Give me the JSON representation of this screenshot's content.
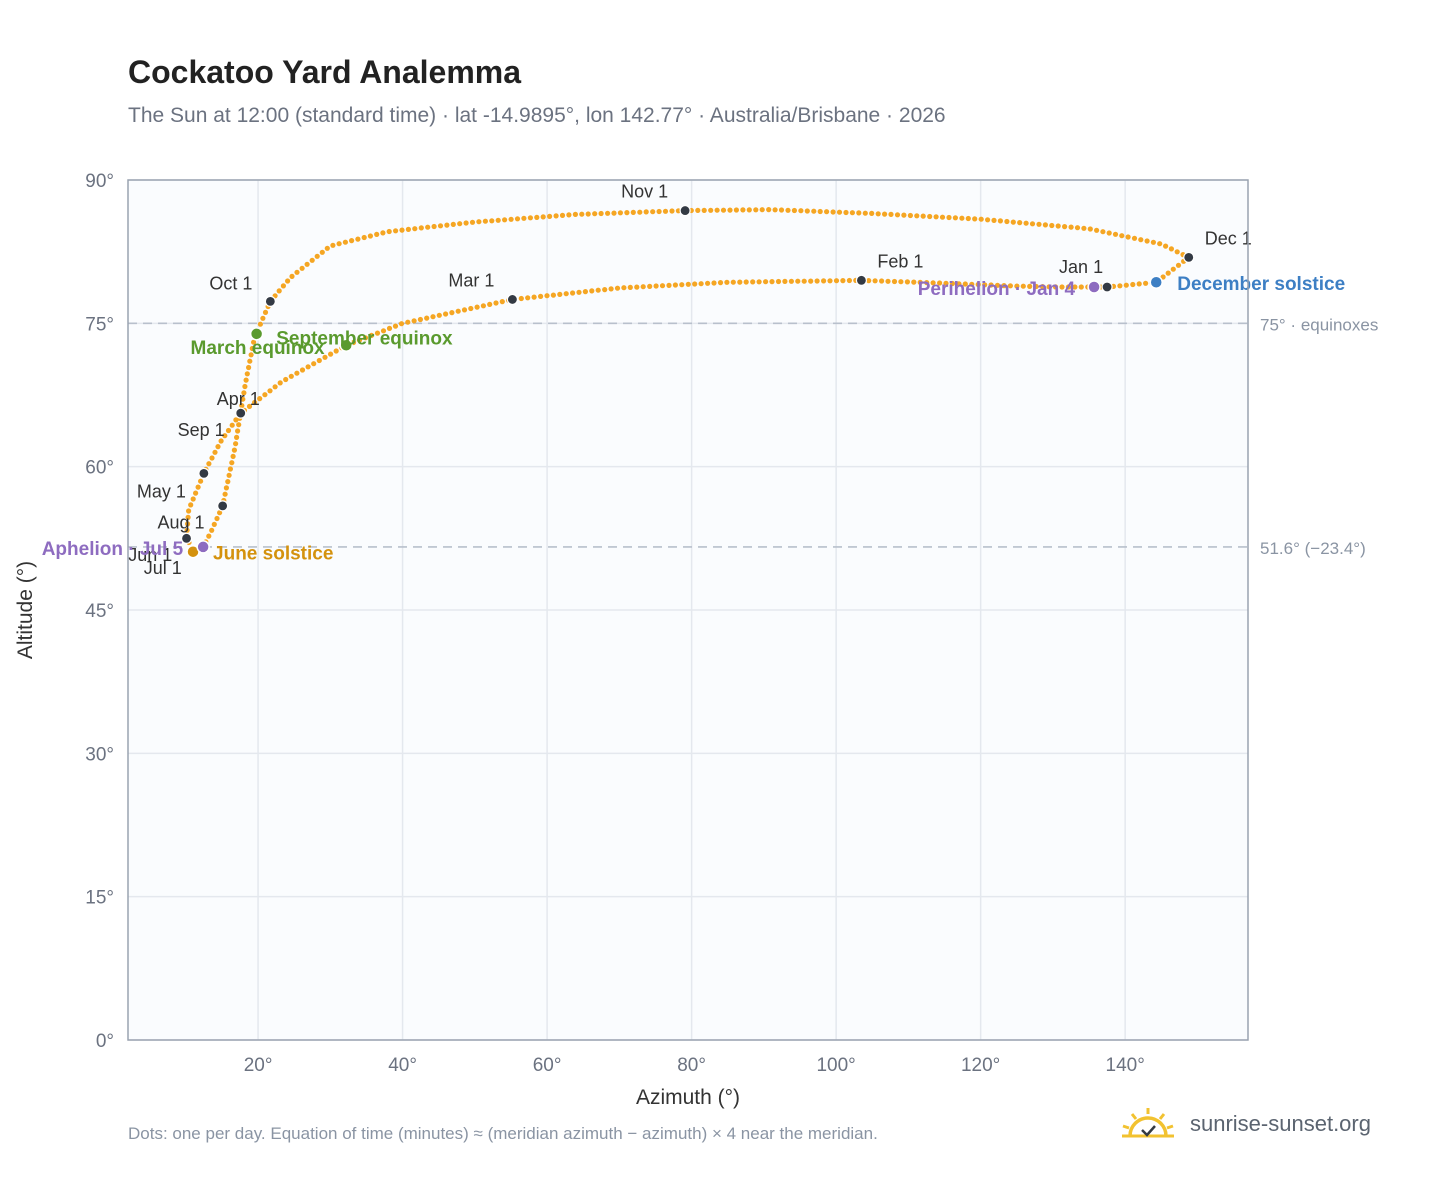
{
  "header": {
    "title": "Cockatoo Yard Analemma",
    "subtitle": "The Sun at 12:00 (standard time) · lat -14.9895°, lon 142.77° · Australia/Brisbane · 2026"
  },
  "footer": {
    "note": "Dots: one per day. Equation of time (minutes) ≈ (meridian azimuth − azimuth) × 4 near the meridian.",
    "brand": "sunrise-sunset.org"
  },
  "chart_data": {
    "type": "scatter",
    "xlabel": "Azimuth (°)",
    "ylabel": "Altitude (°)",
    "xlim": [
      2,
      157
    ],
    "ylim": [
      0,
      90
    ],
    "xticks": [
      20,
      40,
      60,
      80,
      100,
      120,
      140
    ],
    "xtick_labels": [
      "20°",
      "40°",
      "60°",
      "80°",
      "100°",
      "120°",
      "140°"
    ],
    "yticks": [
      0,
      15,
      30,
      45,
      60,
      75,
      90
    ],
    "ytick_labels": [
      "0°",
      "15°",
      "30°",
      "45°",
      "60°",
      "75°",
      "90°"
    ],
    "grid": true,
    "colors": {
      "path": "#f5a623",
      "month": "#333a44",
      "equinox": "#5a9a2e",
      "june": "#d4920e",
      "december": "#3d7fc4",
      "apsis": "#8e6cc0",
      "ref": "#b8c0cc",
      "grid": "#e4e8ee",
      "frame": "#9aa3b0",
      "plot_bg": "#fafcfe"
    },
    "reference_lines": [
      {
        "y": 75,
        "label": "75° · equinoxes"
      },
      {
        "y": 51.6,
        "label": "51.6° (−23.4°)"
      }
    ],
    "month_markers": [
      {
        "label": "Jan 1",
        "x": 137.5,
        "y": 78.8,
        "anchor": "end",
        "dx": -4,
        "dy": -14
      },
      {
        "label": "Feb 1",
        "x": 103.5,
        "y": 79.5,
        "anchor": "start",
        "dx": 16,
        "dy": -13
      },
      {
        "label": "Mar 1",
        "x": 55.2,
        "y": 77.5,
        "anchor": "end",
        "dx": -18,
        "dy": -13
      },
      {
        "label": "Apr 1",
        "x": 17.6,
        "y": 65.6,
        "anchor": "start",
        "dx": -24,
        "dy": -8
      },
      {
        "label": "May 1",
        "x": 12.5,
        "y": 59.3,
        "anchor": "end",
        "dx": -18,
        "dy": 24
      },
      {
        "label": "Jun 1",
        "x": 10.9,
        "y": 51.3,
        "anchor": "end",
        "dx": -20,
        "dy": 11
      },
      {
        "label": "Jul 1",
        "x": 11.1,
        "y": 51.2,
        "anchor": "end",
        "dx": -12,
        "dy": 23
      },
      {
        "label": "Aug 1",
        "x": 10.1,
        "y": 52.5,
        "anchor": "end",
        "dx": 18,
        "dy": -10
      },
      {
        "label": "Sep 1",
        "x": 15.1,
        "y": 55.9,
        "anchor": "end",
        "dx": 2,
        "dy": -70
      },
      {
        "label": "Oct 1",
        "x": 21.7,
        "y": 77.3,
        "anchor": "end",
        "dx": -18,
        "dy": -12
      },
      {
        "label": "Nov 1",
        "x": 79.1,
        "y": 86.8,
        "anchor": "end",
        "dx": -17,
        "dy": -13
      },
      {
        "label": "Dec 1",
        "x": 148.8,
        "y": 81.9,
        "anchor": "start",
        "dx": 16,
        "dy": -13
      }
    ],
    "events": [
      {
        "label": "March equinox",
        "x": 19.8,
        "y": 73.9,
        "color": "equinox",
        "anchor": "end",
        "dx": 68,
        "dy": 20
      },
      {
        "label": "September equinox",
        "x": 32.2,
        "y": 72.7,
        "color": "equinox",
        "anchor": "start",
        "dx": -70,
        "dy": -1
      },
      {
        "label": "June solstice",
        "x": 11.0,
        "y": 51.1,
        "color": "june",
        "anchor": "start",
        "dx": 20,
        "dy": 8
      },
      {
        "label": "December solstice",
        "x": 144.3,
        "y": 79.3,
        "color": "december",
        "anchor": "start",
        "dx": 21,
        "dy": 8
      },
      {
        "label": "Perihelion · Jan 4",
        "x": 135.7,
        "y": 78.8,
        "color": "apsis",
        "anchor": "end",
        "dx": -19,
        "dy": 8
      },
      {
        "label": "Aphelion · Jul 5",
        "x": 12.4,
        "y": 51.6,
        "color": "apsis",
        "anchor": "end",
        "dx": -20,
        "dy": 8
      }
    ],
    "series": [
      {
        "anchors": [
          [
            137.5,
            78.8
          ],
          [
            144.3,
            79.3
          ],
          [
            148.8,
            81.9
          ],
          [
            145,
            83.3
          ],
          [
            135,
            84.9
          ],
          [
            120,
            85.9
          ],
          [
            105,
            86.5
          ],
          [
            91,
            86.9
          ],
          [
            79.1,
            86.8
          ],
          [
            64,
            86.4
          ],
          [
            50,
            85.6
          ],
          [
            38,
            84.6
          ],
          [
            30,
            83.1
          ],
          [
            24.5,
            79.8
          ],
          [
            21.7,
            77.3
          ],
          [
            19.5,
            73.5
          ],
          [
            18.2,
            68.5
          ],
          [
            16.8,
            62
          ],
          [
            15.1,
            55.9
          ],
          [
            13.5,
            53.2
          ],
          [
            12.4,
            51.6
          ],
          [
            11.5,
            51.2
          ],
          [
            11.1,
            51.2
          ],
          [
            10.1,
            52.5
          ],
          [
            10.4,
            55.5
          ],
          [
            12.5,
            59.3
          ],
          [
            14.8,
            62.6
          ],
          [
            17.6,
            65.6
          ],
          [
            23.3,
            68.9
          ],
          [
            32.2,
            72.7
          ],
          [
            40,
            75
          ],
          [
            55.2,
            77.5
          ],
          [
            70,
            78.7
          ],
          [
            85,
            79.3
          ],
          [
            103.5,
            79.5
          ],
          [
            115,
            79.2
          ],
          [
            125,
            78.9
          ],
          [
            131,
            78.8
          ],
          [
            137.5,
            78.8
          ]
        ],
        "days": [
          0,
          20,
          334,
          340,
          345,
          350,
          354,
          358,
          304,
          298,
          292,
          287,
          283,
          278,
          273,
          266,
          258,
          250,
          243,
          236,
          185,
          190,
          181,
          212,
          220,
          120,
          105,
          90,
          80,
          258,
          268,
          59,
          45,
          38,
          31,
          20,
          12,
          7,
          365
        ]
      }
    ]
  }
}
